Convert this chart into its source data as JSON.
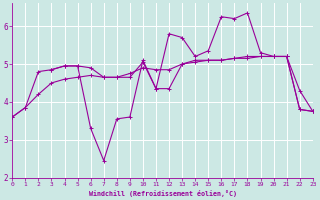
{
  "background_color": "#cce8e4",
  "line_color": "#990099",
  "grid_color": "#ffffff",
  "xlabel": "Windchill (Refroidissement éolien,°C)",
  "xlim": [
    0,
    23
  ],
  "ylim": [
    2,
    6.6
  ],
  "yticks": [
    2,
    3,
    4,
    5,
    6
  ],
  "xticks": [
    0,
    1,
    2,
    3,
    4,
    5,
    6,
    7,
    8,
    9,
    10,
    11,
    12,
    13,
    14,
    15,
    16,
    17,
    18,
    19,
    20,
    21,
    22,
    23
  ],
  "line1_x": [
    0,
    1,
    2,
    3,
    4,
    5,
    6,
    7,
    8,
    9,
    10,
    11,
    12,
    13,
    14,
    15,
    16,
    17,
    18,
    19,
    20,
    21,
    22,
    23
  ],
  "line1_y": [
    3.6,
    3.85,
    4.8,
    4.85,
    4.95,
    4.95,
    3.3,
    2.45,
    3.55,
    3.6,
    5.1,
    4.35,
    5.8,
    5.7,
    5.2,
    5.35,
    6.25,
    6.2,
    6.35,
    5.3,
    5.2,
    5.2,
    4.3,
    3.75
  ],
  "line2_x": [
    0,
    1,
    2,
    3,
    4,
    5,
    6,
    7,
    8,
    9,
    10,
    11,
    12,
    13,
    14,
    15,
    16,
    17,
    18,
    19,
    20,
    21,
    22,
    23
  ],
  "line2_y": [
    3.6,
    3.85,
    4.2,
    4.5,
    4.6,
    4.65,
    4.7,
    4.65,
    4.65,
    4.75,
    4.9,
    4.85,
    4.85,
    5.0,
    5.05,
    5.1,
    5.1,
    5.15,
    5.2,
    5.2,
    5.2,
    5.2,
    3.8,
    3.75
  ],
  "line3_x": [
    3,
    4,
    5,
    6,
    7,
    8,
    9,
    10,
    11,
    12,
    13,
    14,
    15,
    16,
    17,
    18,
    19,
    20,
    21,
    22,
    23
  ],
  "line3_y": [
    4.85,
    4.95,
    4.95,
    4.9,
    4.65,
    4.65,
    4.65,
    5.05,
    4.35,
    4.35,
    5.0,
    5.1,
    5.1,
    5.1,
    5.15,
    5.15,
    5.2,
    5.2,
    5.2,
    3.8,
    3.75
  ]
}
